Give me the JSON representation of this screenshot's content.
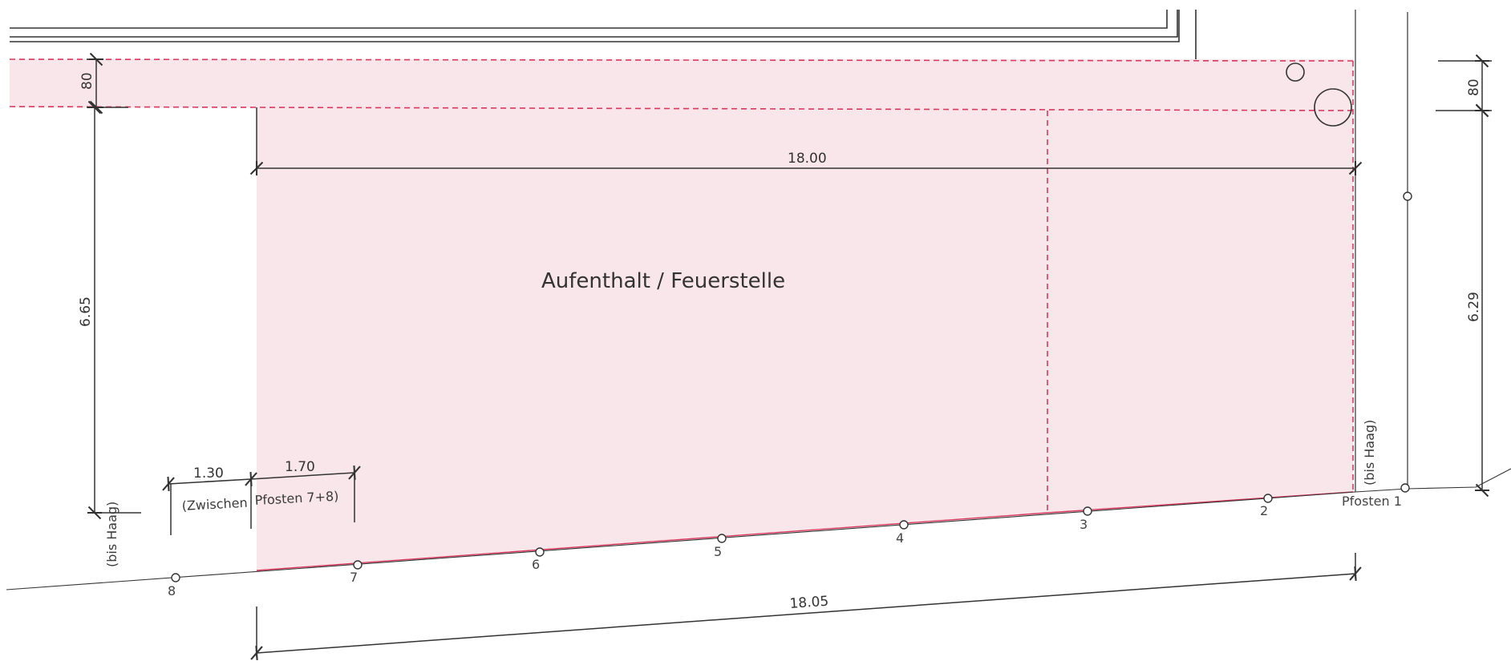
{
  "area_label": "Aufenthalt / Feuerstelle",
  "colors": {
    "zone_fill": "#f9e6ea",
    "zone_border": "#d9385e",
    "line": "#333333"
  },
  "dimensions": {
    "top_strip_left": "80",
    "top_strip_right": "80",
    "width_top": "18.00",
    "height_left": "6.65",
    "height_right": "6.29",
    "width_bottom": "18.05",
    "offset_small": "1.30",
    "offset_post": "1.70"
  },
  "notes": {
    "bis_haag_left": "(bis Haag)",
    "bis_haag_right": "(bis Haag)",
    "zwischen": "(Zwischen",
    "pfosten_7_8": "Pfosten 7+8)"
  },
  "posts": [
    "Pfosten 1",
    "2",
    "3",
    "4",
    "5",
    "6",
    "7",
    "8"
  ]
}
